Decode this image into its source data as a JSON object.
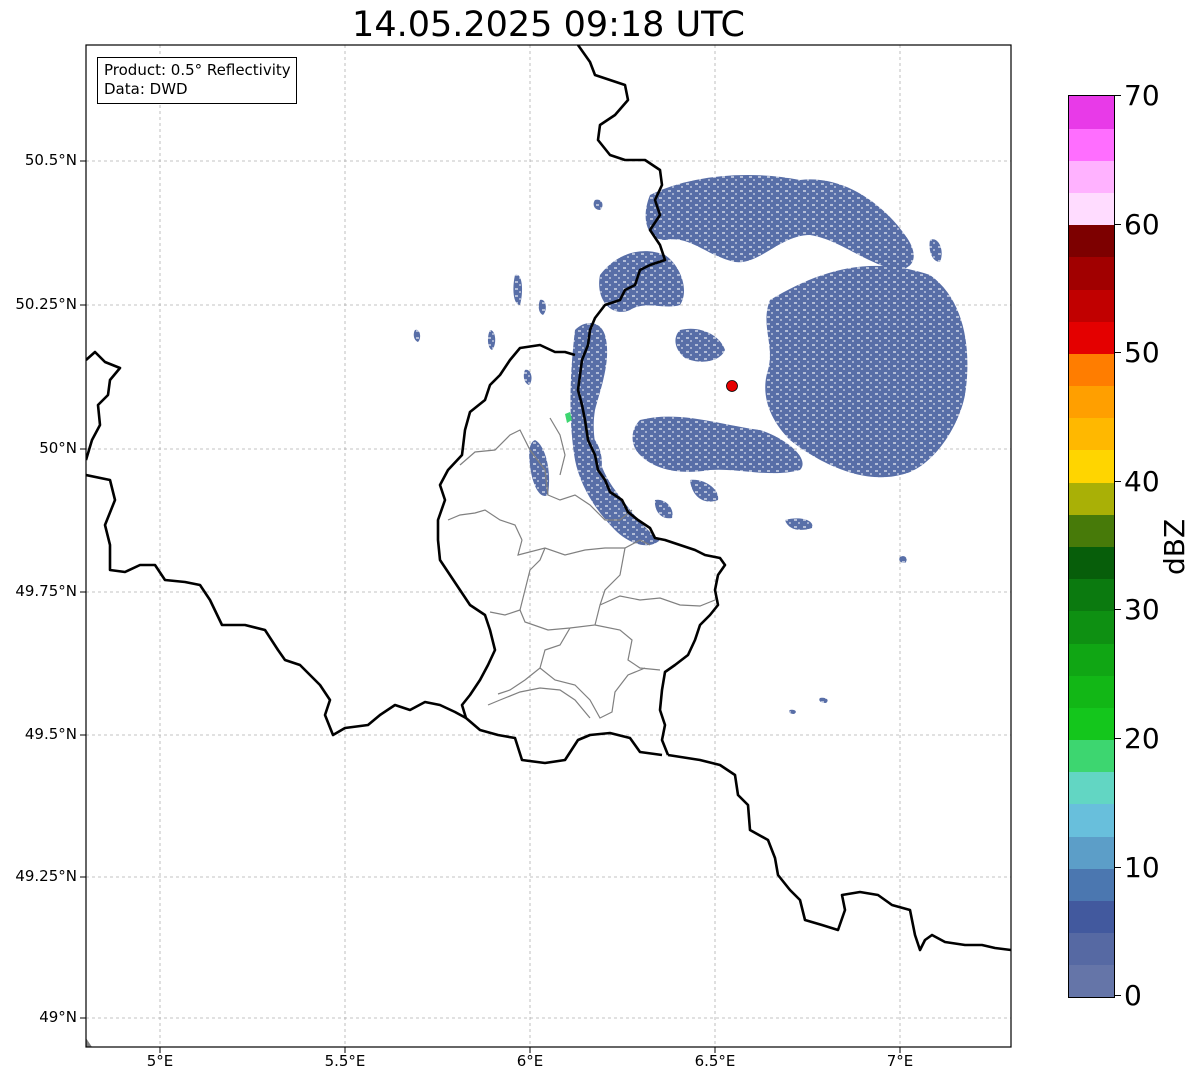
{
  "title": "14.05.2025 09:18 UTC",
  "info_box": {
    "product": "Product: 0.5° Reflectivity",
    "data": "Data: DWD"
  },
  "axes": {
    "lat_ticks": [
      "50.5°N",
      "50.25°N",
      "50°N",
      "49.75°N",
      "49.5°N",
      "49.25°N",
      "49°N"
    ],
    "lon_ticks": [
      "5°E",
      "5.5°E",
      "6°E",
      "6.5°E",
      "7°E"
    ]
  },
  "colorbar": {
    "unit": "dBZ",
    "ticks": [
      "0",
      "10",
      "20",
      "30",
      "40",
      "50",
      "60",
      "70"
    ],
    "colors": [
      "#6575a8",
      "#5669a3",
      "#42599e",
      "#4b77b0",
      "#5c9ec8",
      "#68bfdc",
      "#62d6c3",
      "#3dd670",
      "#14c61c",
      "#12b716",
      "#10a614",
      "#0e9012",
      "#0b7a0f",
      "#075e0a",
      "#477a09",
      "#a9b006",
      "#ffd500",
      "#ffb800",
      "#ff9f00",
      "#ff7d00",
      "#e40000",
      "#c10000",
      "#a10000",
      "#7d0000",
      "#ffdcff",
      "#ffb2ff",
      "#ff6eff",
      "#e83ae8"
    ]
  },
  "radar_site": {
    "lon": 6.55,
    "lat": 50.11,
    "color": "#e60000"
  },
  "echo_color": "#4a62a0",
  "echo_highlight_color": "#3dd670"
}
